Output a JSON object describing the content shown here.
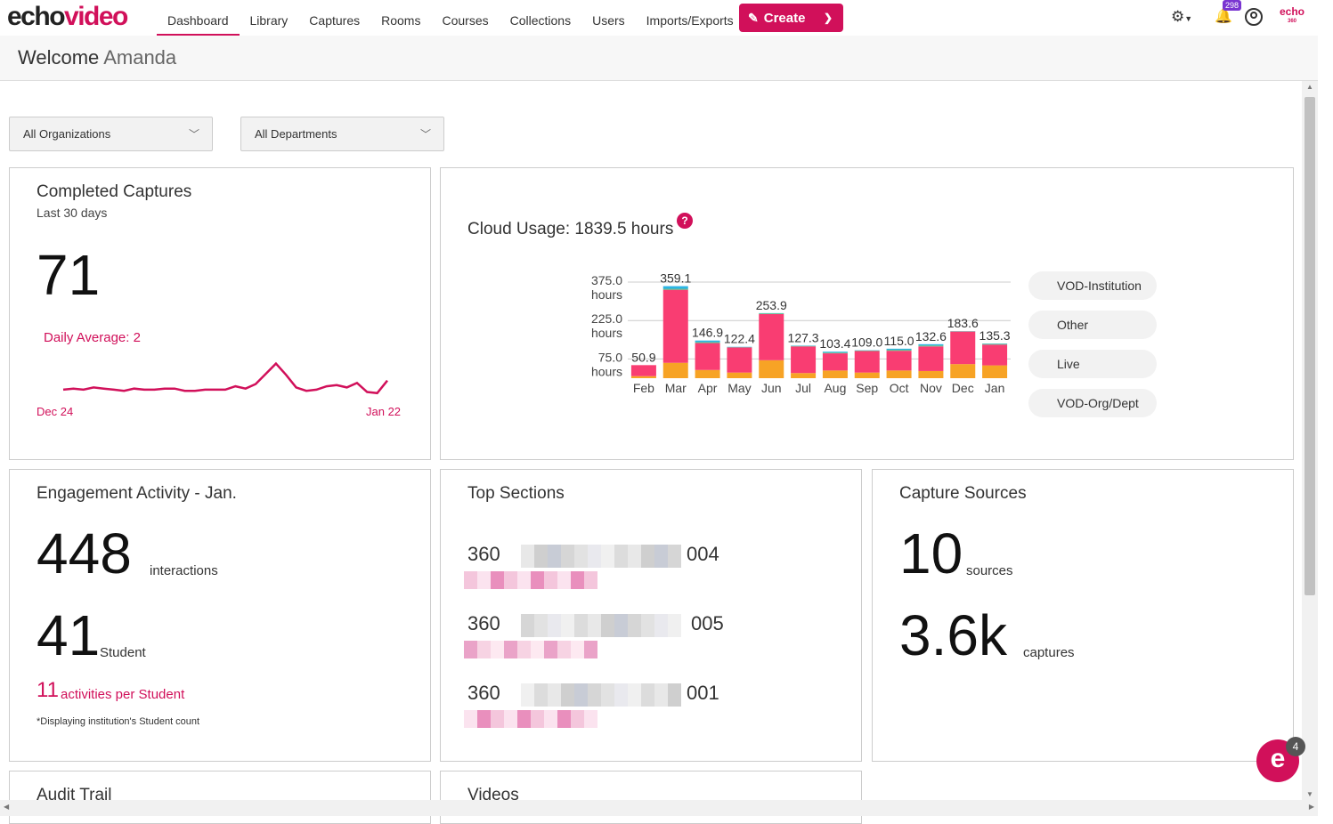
{
  "brand": {
    "logo_a": "echo",
    "logo_b": "video",
    "mini_logo": "echo",
    "mini_logo_sub": "360"
  },
  "nav": {
    "items": [
      {
        "label": "Dashboard",
        "active": true
      },
      {
        "label": "Library"
      },
      {
        "label": "Captures"
      },
      {
        "label": "Rooms"
      },
      {
        "label": "Courses"
      },
      {
        "label": "Collections"
      },
      {
        "label": "Users"
      },
      {
        "label": "Imports/Exports"
      }
    ],
    "create_label": "Create",
    "notifications_count": "298"
  },
  "welcome": {
    "prefix": "Welcome",
    "name": "Amanda"
  },
  "filters": {
    "organization": "All Organizations",
    "department": "All Departments"
  },
  "completed_captures": {
    "title": "Completed Captures",
    "subtitle": "Last 30 days",
    "count": "71",
    "daily_average": "Daily Average: 2",
    "start_label": "Dec 24",
    "end_label": "Jan 22",
    "sparkline": [
      1.1,
      1.2,
      1.1,
      1.3,
      1.2,
      1.1,
      1.0,
      1.2,
      1.1,
      1.1,
      1.2,
      1.2,
      1.0,
      1.0,
      1.1,
      1.1,
      1.1,
      1.4,
      1.2,
      1.6,
      2.5,
      3.4,
      2.4,
      1.3,
      1.0,
      1.1,
      1.4,
      1.5,
      1.3,
      1.7,
      0.9,
      0.8,
      1.9
    ]
  },
  "cloud_usage": {
    "title": "Cloud Usage: 1839.5 hours",
    "legend": [
      "VOD-Institution",
      "Other",
      "Live",
      "VOD-Org/Dept"
    ]
  },
  "chart_data": {
    "type": "bar",
    "title": "Cloud Usage: 1839.5 hours",
    "categories": [
      "Feb",
      "Mar",
      "Apr",
      "May",
      "Jun",
      "Jul",
      "Aug",
      "Sep",
      "Oct",
      "Nov",
      "Dec",
      "Jan"
    ],
    "totals": [
      "50.9",
      "359.1",
      "146.9",
      "122.4",
      "253.9",
      "127.3",
      "103.4",
      "109.0",
      "115.0",
      "132.6",
      "183.6",
      "135.3"
    ],
    "series": [
      {
        "name": "VOD-Org/Dept",
        "values": [
          8,
          60,
          32,
          22,
          70,
          20,
          30,
          22,
          30,
          28,
          55,
          50
        ]
      },
      {
        "name": "Live",
        "values": [
          42.9,
          285,
          105,
          98,
          180,
          104,
          67,
          84,
          77,
          96,
          127,
          81
        ]
      },
      {
        "name": "Other",
        "values": [
          0,
          4,
          4,
          1,
          3,
          2,
          3,
          2,
          4,
          4,
          1,
          3
        ]
      },
      {
        "name": "VOD-Institution",
        "values": [
          0,
          10.1,
          5.9,
          1.4,
          0.9,
          1.3,
          3.4,
          1.0,
          4.0,
          4.6,
          0.6,
          1.3
        ]
      }
    ],
    "yticks": [
      "375.0",
      "225.0",
      "75.0"
    ],
    "ytick_unit": "hours",
    "ylim": [
      0,
      375
    ],
    "colors": {
      "VOD-Org/Dept": "#f7a325",
      "Live": "#f93d72",
      "Other": "#5ec38a",
      "VOD-Institution": "#2cb4e6"
    }
  },
  "engagement": {
    "title": "Engagement Activity - Jan.",
    "interactions": "448",
    "interactions_label": "interactions",
    "students": "41",
    "students_label": "Student",
    "per_student": "11",
    "per_student_label": "activities per Student",
    "footnote": "*Displaying institution's Student count"
  },
  "top_sections": {
    "title": "Top Sections",
    "rows": [
      {
        "prefix": "360",
        "suffix": "004"
      },
      {
        "prefix": "360",
        "suffix": "005"
      },
      {
        "prefix": "360",
        "suffix": "001"
      }
    ]
  },
  "capture_sources": {
    "title": "Capture Sources",
    "sources": "10",
    "sources_label": "sources",
    "captures": "3.6k",
    "captures_label": "captures"
  },
  "audit_trail": {
    "title": "Audit Trail"
  },
  "videos": {
    "title": "Videos"
  },
  "chat": {
    "badge": "4",
    "glyph": "e"
  },
  "colors": {
    "accent": "#d1105a"
  }
}
